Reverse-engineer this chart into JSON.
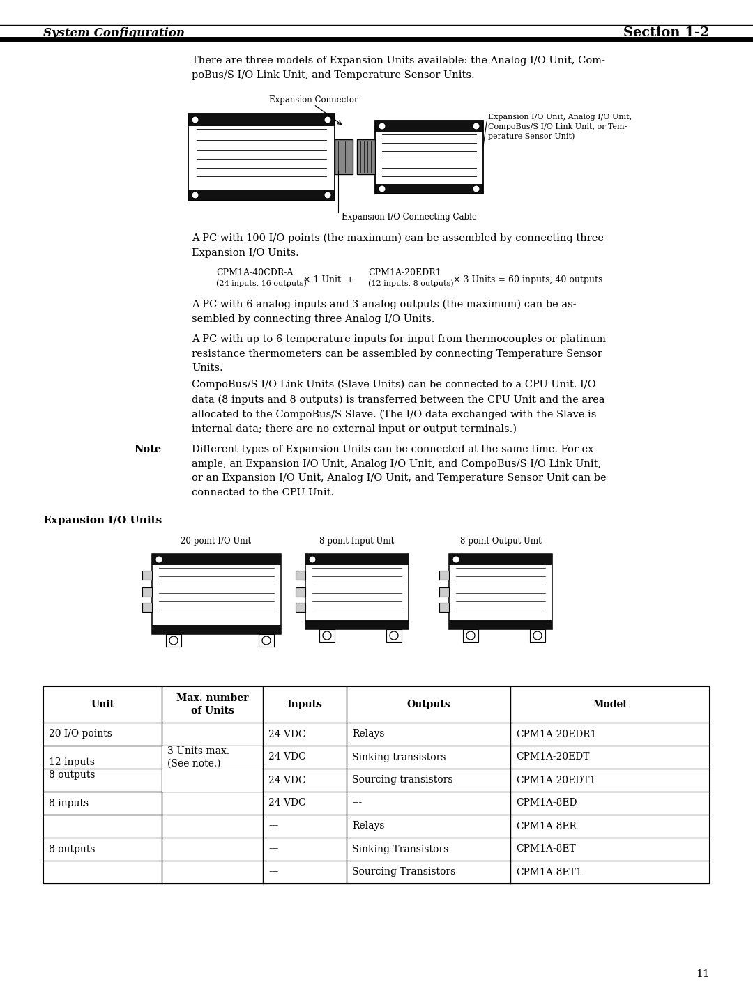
{
  "header_left": "System Configuration",
  "header_right": "Section 1-2",
  "page_number": "11",
  "bg_color": "#ffffff",
  "para1": "There are three models of Expansion Units available: the Analog I/O Unit, Com-\npoBus/S I/O Link Unit, and Temperature Sensor Units.",
  "exp_connector_label": "Expansion Connector",
  "exp_unit_label": "Expansion I/O Unit, Analog I/O Unit,\nCompoBus/S I/O Link Unit, or Tem-\nperature Sensor Unit)",
  "exp_cable_label": "Expansion I/O Connecting Cable",
  "para2": "A PC with 100 I/O points (the maximum) can be assembled by connecting three\nExpansion I/O Units.",
  "formula_left_model": "CPM1A-40CDR-A",
  "formula_left_sub": "(24 inputs, 16 outputs)",
  "formula_mid": "× 1 Unit  +",
  "formula_right_model": "CPM1A-20EDR1",
  "formula_right_sub": "(12 inputs, 8 outputs)",
  "formula_right2": "× 3 Units = 60 inputs, 40 outputs",
  "para3": "A PC with 6 analog inputs and 3 analog outputs (the maximum) can be as-\nsembled by connecting three Analog I/O Units.",
  "para4": "A PC with up to 6 temperature inputs for input from thermocouples or platinum\nresistance thermometers can be assembled by connecting Temperature Sensor\nUnits.",
  "para5": "CompoBus/S I/O Link Units (Slave Units) can be connected to a CPU Unit. I/O\ndata (8 inputs and 8 outputs) is transferred between the CPU Unit and the area\nallocated to the CompoBus/S Slave. (The I/O data exchanged with the Slave is\ninternal data; there are no external input or output terminals.)",
  "note_label": "Note",
  "note_text": "Different types of Expansion Units can be connected at the same time. For ex-\nample, an Expansion I/O Unit, Analog I/O Unit, and CompoBus/S I/O Link Unit,\nor an Expansion I/O Unit, Analog I/O Unit, and Temperature Sensor Unit can be\nconnected to the CPU Unit.",
  "section_title": "Expansion I/O Units",
  "unit_labels": [
    "20-point I/O Unit",
    "8-point Input Unit",
    "8-point Output Unit"
  ],
  "table_headers": [
    "Unit",
    "Max. number\nof Units",
    "Inputs",
    "Outputs",
    "Model"
  ],
  "table_col0": [
    [
      0,
      0,
      "20 I/O points"
    ],
    [
      1,
      2,
      "12 inputs\n8 outputs"
    ],
    [
      3,
      3,
      "8 inputs"
    ],
    [
      4,
      6,
      "8 outputs"
    ]
  ],
  "table_col1": [
    [
      0,
      2,
      "3 Units max.\n(See note.)"
    ]
  ],
  "table_data": [
    [
      "24 VDC",
      "Relays",
      "CPM1A-20EDR1"
    ],
    [
      "24 VDC",
      "Sinking transistors",
      "CPM1A-20EDT"
    ],
    [
      "24 VDC",
      "Sourcing transistors",
      "CPM1A-20EDT1"
    ],
    [
      "24 VDC",
      "---",
      "CPM1A-8ED"
    ],
    [
      "---",
      "Relays",
      "CPM1A-8ER"
    ],
    [
      "---",
      "Sinking Transistors",
      "CPM1A-8ET"
    ],
    [
      "---",
      "Sourcing Transistors",
      "CPM1A-8ET1"
    ]
  ]
}
